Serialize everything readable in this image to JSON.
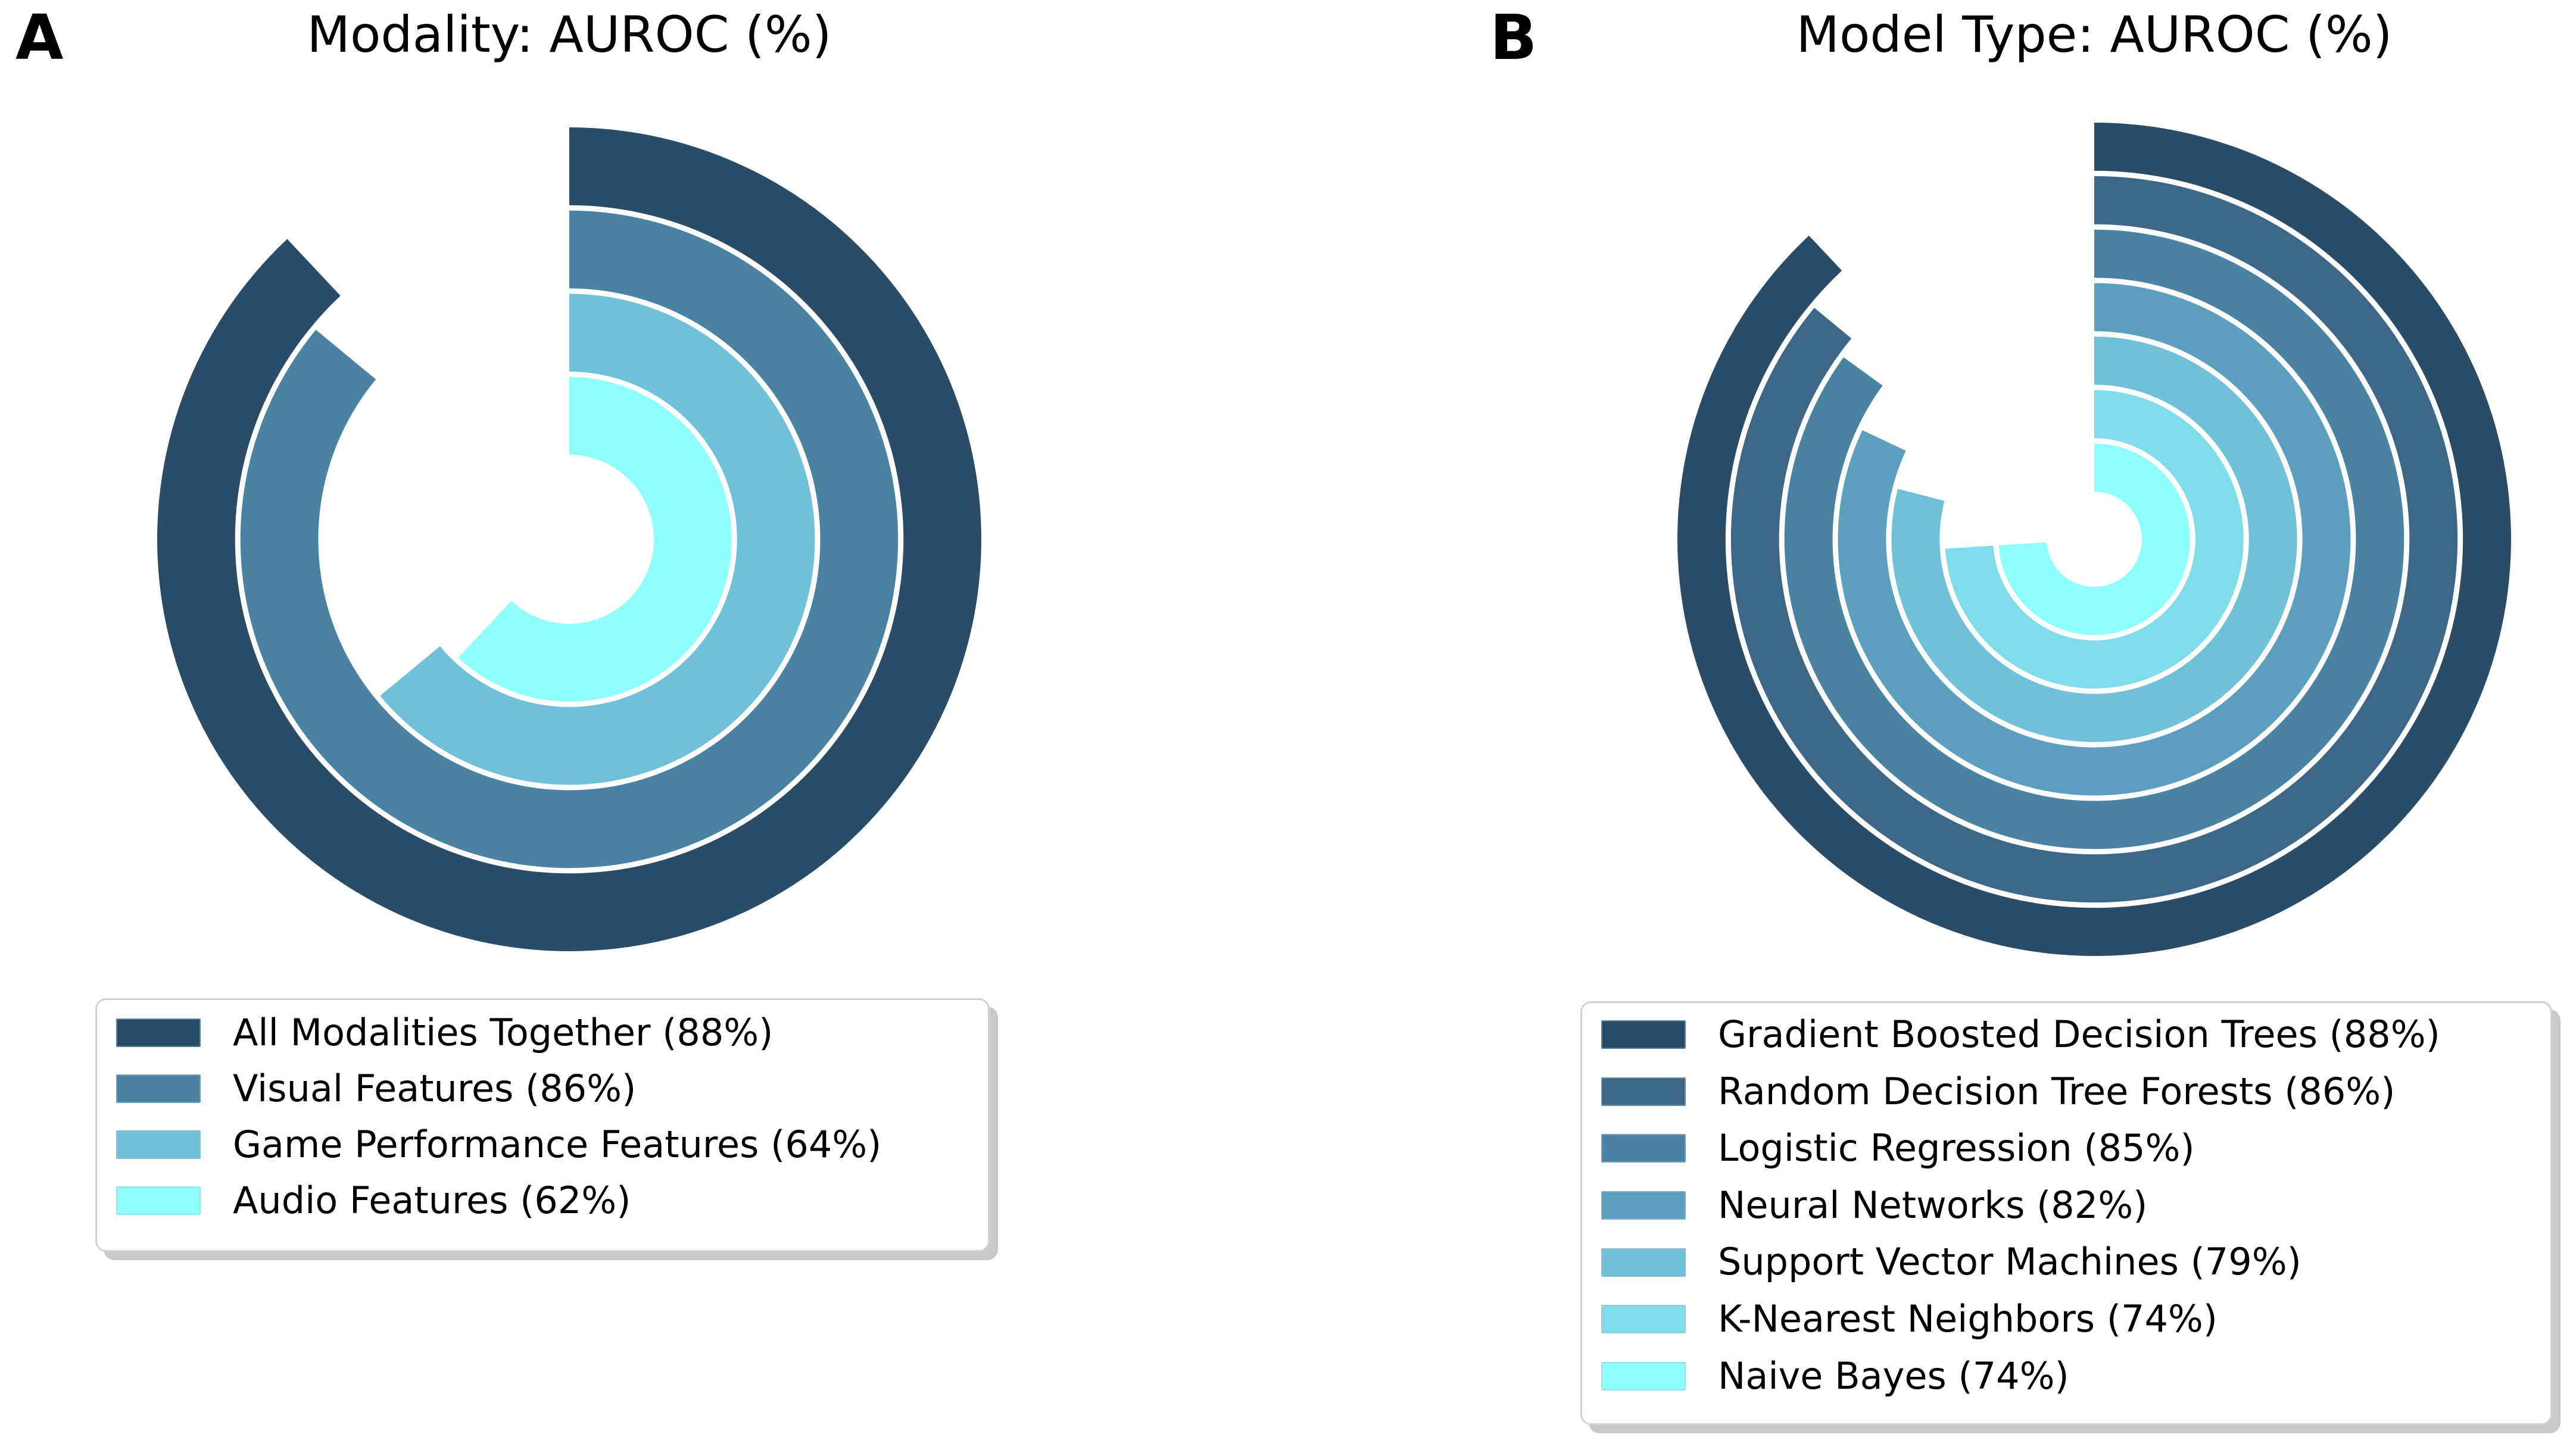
{
  "figure": {
    "background": "#ffffff"
  },
  "panels": [
    {
      "label": "A",
      "title": "Modality: AUROC (%)",
      "chart_data": {
        "type": "bar",
        "layout": "polar-radial-progress",
        "start_angle_deg": 0,
        "direction": "clockwise",
        "angle_mapping": "percent_of_full_circle",
        "title": "Modality: AUROC (%)",
        "metric": "AUROC",
        "unit": "%",
        "ring_order": "outermost-to-innermost",
        "categories": [
          "All Modalities Together",
          "Visual Features",
          "Game Performance Features",
          "Audio Features"
        ],
        "values": [
          88,
          86,
          64,
          62
        ],
        "colors": [
          "#2B4C67",
          "#4A82A3",
          "#6FC0D8",
          "#8FFEFE"
        ],
        "grid": false,
        "axis_labels": false,
        "legend_position": "bottom-left"
      },
      "legend": {
        "items": [
          {
            "label": "All Modalities Together (88%)",
            "value": 88,
            "color": "#2B4C67"
          },
          {
            "label": "Visual Features (86%)",
            "value": 86,
            "color": "#4A82A3"
          },
          {
            "label": "Game Performance Features (64%)",
            "value": 64,
            "color": "#6FC0D8"
          },
          {
            "label": "Audio Features (62%)",
            "value": 62,
            "color": "#8FFEFE"
          }
        ]
      }
    },
    {
      "label": "B",
      "title": "Model Type: AUROC (%)",
      "chart_data": {
        "type": "bar",
        "layout": "polar-radial-progress",
        "start_angle_deg": 0,
        "direction": "clockwise",
        "angle_mapping": "percent_of_full_circle",
        "title": "Model Type: AUROC (%)",
        "metric": "AUROC",
        "unit": "%",
        "ring_order": "outermost-to-innermost",
        "categories": [
          "Gradient Boosted Decision Trees",
          "Random Decision Tree Forests",
          "Logistic Regression",
          "Neural Networks",
          "Support Vector Machines",
          "K-Nearest Neighbors",
          "Naive Bayes"
        ],
        "values": [
          88,
          86,
          85,
          82,
          79,
          74,
          74
        ],
        "colors": [
          "#2B4C67",
          "#3C6787",
          "#4A82A3",
          "#5C9EBD",
          "#6FC0D8",
          "#80DCE8",
          "#8FFEFE"
        ],
        "grid": false,
        "axis_labels": false,
        "legend_position": "bottom-left"
      },
      "legend": {
        "items": [
          {
            "label": "Gradient Boosted Decision Trees (88%)",
            "value": 88,
            "color": "#2B4C67"
          },
          {
            "label": "Random Decision Tree Forests (86%)",
            "value": 86,
            "color": "#3C6787"
          },
          {
            "label": "Logistic Regression (85%)",
            "value": 85,
            "color": "#4A82A3"
          },
          {
            "label": "Neural Networks (82%)",
            "value": 82,
            "color": "#5C9EBD"
          },
          {
            "label": "Support Vector Machines (79%)",
            "value": 79,
            "color": "#6FC0D8"
          },
          {
            "label": "K-Nearest Neighbors (74%)",
            "value": 74,
            "color": "#80DCE8"
          },
          {
            "label": "Naive Bayes (74%)",
            "value": 74,
            "color": "#8FFEFE"
          }
        ]
      }
    }
  ]
}
